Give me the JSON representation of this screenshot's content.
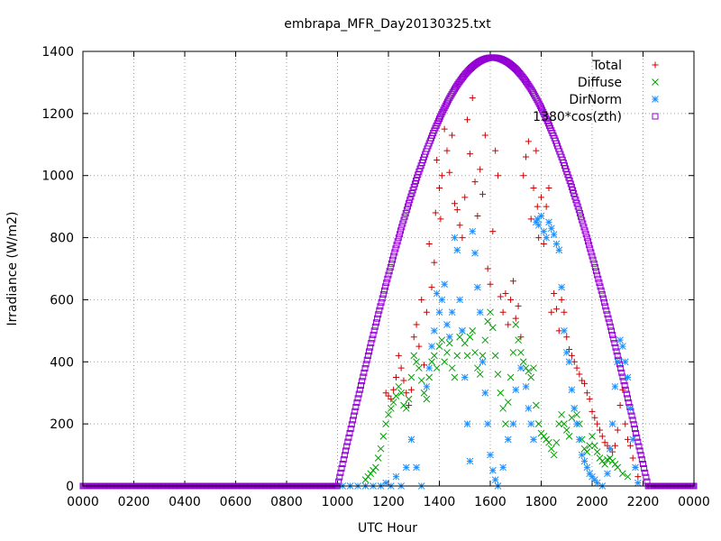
{
  "chart_data": {
    "type": "scatter",
    "title": "embrapa_MFR_Day20130325.txt",
    "xlabel": "UTC Hour",
    "ylabel": "Irradiance (W/m2)",
    "xlim": [
      0,
      24
    ],
    "ylim": [
      0,
      1400
    ],
    "x_tick_values": [
      0,
      2,
      4,
      6,
      8,
      10,
      12,
      14,
      16,
      18,
      20,
      22,
      24
    ],
    "x_tick_labels": [
      "0000",
      "0200",
      "0400",
      "0600",
      "0800",
      "1000",
      "1200",
      "1400",
      "1600",
      "1800",
      "2000",
      "2200",
      "0000"
    ],
    "y_ticks": [
      0,
      200,
      400,
      600,
      800,
      1000,
      1200,
      1400
    ],
    "grid": true,
    "legend_position": "top-right",
    "series": [
      {
        "name": "Total",
        "marker": "plus",
        "color": "#cc0000",
        "points": [
          [
            11.9,
            300
          ],
          [
            12.0,
            290
          ],
          [
            12.1,
            280
          ],
          [
            12.2,
            310
          ],
          [
            12.3,
            350
          ],
          [
            12.4,
            420
          ],
          [
            12.5,
            380
          ],
          [
            12.6,
            340
          ],
          [
            12.7,
            300
          ],
          [
            12.8,
            260
          ],
          [
            12.9,
            310
          ],
          [
            13.0,
            480
          ],
          [
            13.1,
            520
          ],
          [
            13.2,
            450
          ],
          [
            13.3,
            600
          ],
          [
            13.4,
            390
          ],
          [
            13.5,
            560
          ],
          [
            13.6,
            780
          ],
          [
            13.7,
            640
          ],
          [
            13.8,
            720
          ],
          [
            13.85,
            880
          ],
          [
            13.9,
            1050
          ],
          [
            14.0,
            960
          ],
          [
            14.05,
            860
          ],
          [
            14.1,
            1000
          ],
          [
            14.2,
            1150
          ],
          [
            14.3,
            1080
          ],
          [
            14.4,
            1010
          ],
          [
            14.5,
            1130
          ],
          [
            14.6,
            910
          ],
          [
            14.7,
            890
          ],
          [
            14.8,
            840
          ],
          [
            14.9,
            800
          ],
          [
            15.0,
            930
          ],
          [
            15.1,
            1180
          ],
          [
            15.2,
            1070
          ],
          [
            15.3,
            1250
          ],
          [
            15.4,
            980
          ],
          [
            15.5,
            870
          ],
          [
            15.6,
            1020
          ],
          [
            15.7,
            940
          ],
          [
            15.8,
            1130
          ],
          [
            15.9,
            700
          ],
          [
            16.0,
            650
          ],
          [
            16.1,
            820
          ],
          [
            16.2,
            1080
          ],
          [
            16.3,
            1000
          ],
          [
            16.4,
            610
          ],
          [
            16.5,
            560
          ],
          [
            16.6,
            620
          ],
          [
            16.7,
            520
          ],
          [
            16.8,
            600
          ],
          [
            16.9,
            660
          ],
          [
            17.0,
            540
          ],
          [
            17.1,
            580
          ],
          [
            17.2,
            480
          ],
          [
            17.3,
            1000
          ],
          [
            17.4,
            1060
          ],
          [
            17.5,
            1110
          ],
          [
            17.6,
            860
          ],
          [
            17.7,
            960
          ],
          [
            17.8,
            1080
          ],
          [
            17.85,
            900
          ],
          [
            17.9,
            800
          ],
          [
            18.0,
            930
          ],
          [
            18.1,
            780
          ],
          [
            18.2,
            900
          ],
          [
            18.3,
            960
          ],
          [
            18.4,
            560
          ],
          [
            18.5,
            620
          ],
          [
            18.6,
            570
          ],
          [
            18.7,
            500
          ],
          [
            18.8,
            600
          ],
          [
            18.9,
            560
          ],
          [
            19.0,
            480
          ],
          [
            19.1,
            440
          ],
          [
            19.2,
            420
          ],
          [
            19.3,
            400
          ],
          [
            19.4,
            380
          ],
          [
            19.5,
            360
          ],
          [
            19.6,
            340
          ],
          [
            19.7,
            330
          ],
          [
            19.8,
            300
          ],
          [
            19.9,
            280
          ],
          [
            20.0,
            240
          ],
          [
            20.1,
            220
          ],
          [
            20.2,
            200
          ],
          [
            20.3,
            180
          ],
          [
            20.4,
            160
          ],
          [
            20.5,
            140
          ],
          [
            20.6,
            130
          ],
          [
            20.7,
            120
          ],
          [
            20.8,
            110
          ],
          [
            20.9,
            130
          ],
          [
            21.0,
            180
          ],
          [
            21.1,
            260
          ],
          [
            21.2,
            310
          ],
          [
            21.3,
            200
          ],
          [
            21.4,
            150
          ],
          [
            21.5,
            130
          ],
          [
            21.6,
            90
          ],
          [
            21.7,
            60
          ],
          [
            21.8,
            30
          ]
        ]
      },
      {
        "name": "Diffuse",
        "marker": "cross",
        "color": "#00a000",
        "points": [
          [
            11.1,
            20
          ],
          [
            11.2,
            30
          ],
          [
            11.3,
            40
          ],
          [
            11.4,
            50
          ],
          [
            11.5,
            60
          ],
          [
            11.6,
            90
          ],
          [
            11.7,
            120
          ],
          [
            11.8,
            160
          ],
          [
            11.9,
            200
          ],
          [
            12.0,
            230
          ],
          [
            12.1,
            250
          ],
          [
            12.2,
            270
          ],
          [
            12.3,
            290
          ],
          [
            12.4,
            320
          ],
          [
            12.5,
            300
          ],
          [
            12.6,
            260
          ],
          [
            12.7,
            250
          ],
          [
            12.8,
            280
          ],
          [
            12.9,
            350
          ],
          [
            13.0,
            420
          ],
          [
            13.1,
            400
          ],
          [
            13.2,
            380
          ],
          [
            13.3,
            340
          ],
          [
            13.4,
            300
          ],
          [
            13.5,
            280
          ],
          [
            13.6,
            350
          ],
          [
            13.7,
            400
          ],
          [
            13.8,
            420
          ],
          [
            13.9,
            380
          ],
          [
            14.0,
            450
          ],
          [
            14.1,
            470
          ],
          [
            14.2,
            400
          ],
          [
            14.3,
            430
          ],
          [
            14.4,
            460
          ],
          [
            14.5,
            380
          ],
          [
            14.6,
            350
          ],
          [
            14.7,
            420
          ],
          [
            14.8,
            480
          ],
          [
            14.9,
            500
          ],
          [
            15.0,
            460
          ],
          [
            15.1,
            420
          ],
          [
            15.2,
            480
          ],
          [
            15.3,
            500
          ],
          [
            15.4,
            430
          ],
          [
            15.5,
            380
          ],
          [
            15.6,
            360
          ],
          [
            15.7,
            420
          ],
          [
            15.8,
            470
          ],
          [
            15.9,
            530
          ],
          [
            16.0,
            560
          ],
          [
            16.1,
            510
          ],
          [
            16.2,
            420
          ],
          [
            16.3,
            360
          ],
          [
            16.4,
            300
          ],
          [
            16.5,
            250
          ],
          [
            16.6,
            200
          ],
          [
            16.7,
            270
          ],
          [
            16.8,
            350
          ],
          [
            16.9,
            430
          ],
          [
            17.0,
            520
          ],
          [
            17.1,
            470
          ],
          [
            17.2,
            430
          ],
          [
            17.3,
            400
          ],
          [
            17.4,
            380
          ],
          [
            17.5,
            370
          ],
          [
            17.6,
            350
          ],
          [
            17.7,
            380
          ],
          [
            17.8,
            260
          ],
          [
            17.9,
            200
          ],
          [
            18.0,
            170
          ],
          [
            18.1,
            160
          ],
          [
            18.2,
            150
          ],
          [
            18.3,
            140
          ],
          [
            18.4,
            120
          ],
          [
            18.5,
            100
          ],
          [
            18.6,
            140
          ],
          [
            18.7,
            200
          ],
          [
            18.8,
            230
          ],
          [
            18.9,
            200
          ],
          [
            19.0,
            180
          ],
          [
            19.1,
            160
          ],
          [
            19.2,
            220
          ],
          [
            19.3,
            250
          ],
          [
            19.4,
            230
          ],
          [
            19.5,
            200
          ],
          [
            19.6,
            150
          ],
          [
            19.7,
            120
          ],
          [
            19.8,
            110
          ],
          [
            19.9,
            130
          ],
          [
            20.0,
            160
          ],
          [
            20.1,
            130
          ],
          [
            20.2,
            110
          ],
          [
            20.3,
            90
          ],
          [
            20.4,
            80
          ],
          [
            20.5,
            70
          ],
          [
            20.6,
            85
          ],
          [
            20.7,
            90
          ],
          [
            20.8,
            80
          ],
          [
            20.9,
            70
          ],
          [
            21.0,
            60
          ],
          [
            21.2,
            40
          ],
          [
            21.4,
            30
          ]
        ]
      },
      {
        "name": "DirNorm",
        "marker": "star",
        "color": "#1e90ff",
        "points": [
          [
            10.2,
            0
          ],
          [
            10.5,
            0
          ],
          [
            10.8,
            0
          ],
          [
            11.1,
            0
          ],
          [
            11.4,
            0
          ],
          [
            11.7,
            0
          ],
          [
            11.9,
            10
          ],
          [
            12.1,
            0
          ],
          [
            12.3,
            30
          ],
          [
            12.5,
            0
          ],
          [
            12.7,
            60
          ],
          [
            12.9,
            150
          ],
          [
            13.1,
            60
          ],
          [
            13.3,
            0
          ],
          [
            13.5,
            320
          ],
          [
            13.6,
            380
          ],
          [
            13.7,
            450
          ],
          [
            13.8,
            500
          ],
          [
            13.9,
            620
          ],
          [
            14.0,
            560
          ],
          [
            14.1,
            600
          ],
          [
            14.2,
            650
          ],
          [
            14.3,
            520
          ],
          [
            14.4,
            480
          ],
          [
            14.5,
            560
          ],
          [
            14.6,
            800
          ],
          [
            14.7,
            760
          ],
          [
            14.8,
            600
          ],
          [
            14.9,
            500
          ],
          [
            15.0,
            350
          ],
          [
            15.1,
            200
          ],
          [
            15.2,
            80
          ],
          [
            15.3,
            820
          ],
          [
            15.4,
            750
          ],
          [
            15.5,
            640
          ],
          [
            15.6,
            560
          ],
          [
            15.7,
            400
          ],
          [
            15.8,
            300
          ],
          [
            15.9,
            200
          ],
          [
            16.0,
            100
          ],
          [
            16.1,
            50
          ],
          [
            16.2,
            20
          ],
          [
            16.3,
            0
          ],
          [
            16.5,
            60
          ],
          [
            16.7,
            150
          ],
          [
            16.9,
            200
          ],
          [
            17.0,
            310
          ],
          [
            17.2,
            380
          ],
          [
            17.4,
            320
          ],
          [
            17.5,
            250
          ],
          [
            17.6,
            200
          ],
          [
            17.7,
            150
          ],
          [
            17.8,
            850
          ],
          [
            17.85,
            860
          ],
          [
            17.9,
            840
          ],
          [
            18.0,
            870
          ],
          [
            18.1,
            820
          ],
          [
            18.2,
            800
          ],
          [
            18.3,
            850
          ],
          [
            18.4,
            830
          ],
          [
            18.5,
            810
          ],
          [
            18.6,
            780
          ],
          [
            18.7,
            760
          ],
          [
            18.8,
            640
          ],
          [
            18.9,
            500
          ],
          [
            19.0,
            430
          ],
          [
            19.1,
            400
          ],
          [
            19.2,
            310
          ],
          [
            19.3,
            250
          ],
          [
            19.4,
            200
          ],
          [
            19.5,
            150
          ],
          [
            19.6,
            100
          ],
          [
            19.7,
            80
          ],
          [
            19.8,
            60
          ],
          [
            19.9,
            40
          ],
          [
            20.0,
            30
          ],
          [
            20.1,
            20
          ],
          [
            20.2,
            10
          ],
          [
            20.4,
            0
          ],
          [
            20.6,
            40
          ],
          [
            20.7,
            120
          ],
          [
            20.8,
            200
          ],
          [
            20.9,
            320
          ],
          [
            21.0,
            400
          ],
          [
            21.1,
            470
          ],
          [
            21.2,
            450
          ],
          [
            21.3,
            400
          ],
          [
            21.4,
            350
          ],
          [
            21.5,
            250
          ],
          [
            21.6,
            150
          ],
          [
            21.7,
            60
          ],
          [
            21.8,
            10
          ]
        ]
      },
      {
        "name": "1380*cos(zth)",
        "marker": "square",
        "color": "#9400d3",
        "function": {
          "peak": 1380,
          "sunrise": 10.0,
          "noon": 16.1,
          "sunset": 22.2
        }
      }
    ]
  }
}
